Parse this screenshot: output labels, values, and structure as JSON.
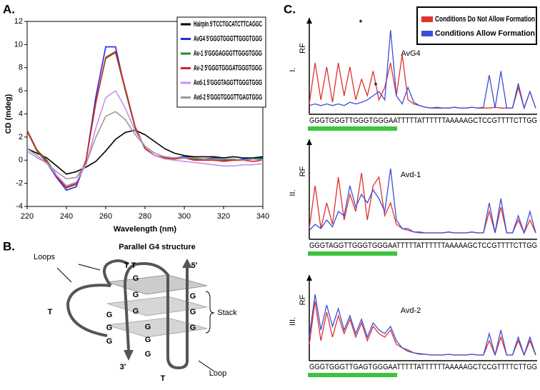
{
  "chart_data": [
    {
      "type": "line",
      "panel_label": "A.",
      "xlabel": "Wavelength (nm)",
      "ylabel": "CD (mdeg)",
      "xlim": [
        220,
        340
      ],
      "ylim": [
        -4,
        12
      ],
      "xticks": [
        220,
        240,
        260,
        280,
        300,
        320,
        340
      ],
      "yticks": [
        -4,
        -2,
        0,
        2,
        4,
        6,
        8,
        10,
        12
      ],
      "legend": "upper right",
      "x": [
        220,
        225,
        230,
        235,
        240,
        245,
        250,
        255,
        260,
        265,
        270,
        275,
        280,
        285,
        290,
        295,
        300,
        305,
        310,
        315,
        320,
        325,
        330,
        335,
        340
      ],
      "series": [
        {
          "name": "Hairpin 5'TCCTGCATCTTCAGGC",
          "color": "#000000",
          "values": [
            1,
            0.6,
            0.2,
            -0.5,
            -1.2,
            -1,
            -0.6,
            -0.1,
            0.8,
            1.8,
            2.4,
            2.6,
            2.2,
            1.6,
            1,
            0.6,
            0.4,
            0.3,
            0.3,
            0.3,
            0.2,
            0.3,
            0.2,
            0.2,
            0.3
          ]
        },
        {
          "name": "AvG4 5'GGGTGGGTTGGGTGGG",
          "color": "#1a2fe0",
          "values": [
            2.5,
            0.8,
            -0.2,
            -1.5,
            -2.6,
            -2.3,
            0,
            5.5,
            9.8,
            9.8,
            6,
            2.8,
            1,
            0.4,
            0.2,
            0.2,
            0.3,
            0.2,
            0.1,
            0.2,
            0.1,
            0,
            0.1,
            0.1,
            0.2
          ]
        },
        {
          "name": "Av-1 5'GGGAGGGTTGGGTGGG",
          "color": "#2a8a2a",
          "values": [
            2.6,
            0.9,
            0,
            -1.3,
            -2.3,
            -2,
            0,
            5,
            8.8,
            9.3,
            6,
            2.8,
            1,
            0.4,
            0.2,
            0.1,
            0.2,
            0.1,
            0,
            0.1,
            0,
            0,
            0,
            0.1,
            0.1
          ]
        },
        {
          "name": "Av-2 5'GGGTGGGATGGGTGGG",
          "color": "#e02020",
          "values": [
            2.5,
            0.8,
            -0.1,
            -1.4,
            -2.4,
            -2.1,
            0,
            5,
            8.9,
            9.4,
            6.2,
            2.9,
            1,
            0.4,
            0.2,
            0.1,
            0.2,
            0,
            0,
            0,
            -0.1,
            0,
            0,
            -0.1,
            0
          ]
        },
        {
          "name": "Avd-1 5'GGGTAGGTTGGGTGGG",
          "color": "#c890f0",
          "values": [
            0.8,
            0.2,
            -0.2,
            -1.3,
            -2.2,
            -1.9,
            -0.4,
            2.8,
            5.4,
            6,
            4.5,
            2.5,
            1.2,
            0.4,
            0.1,
            0,
            -0.1,
            -0.2,
            -0.3,
            -0.4,
            -0.5,
            -0.5,
            -0.4,
            -0.4,
            -0.3
          ]
        },
        {
          "name": "Avd-2 5'GGGTGGGTTGAGTGGG",
          "color": "#999999",
          "values": [
            1,
            0.4,
            -0.3,
            -1,
            -1.6,
            -1.5,
            -0.3,
            2,
            3.8,
            4.2,
            3.5,
            2.2,
            1.2,
            0.6,
            0.3,
            0.2,
            0.2,
            0.2,
            0.1,
            0.1,
            0.1,
            0.1,
            0,
            0.1,
            0
          ]
        }
      ]
    },
    {
      "type": "traces",
      "panel_label": "C.",
      "ylabel": "RF",
      "xlim": [
        0,
        39
      ],
      "ylim": [
        0,
        100
      ],
      "legend": "upper right",
      "x": [
        0,
        1,
        2,
        3,
        4,
        5,
        6,
        7,
        8,
        9,
        10,
        11,
        12,
        13,
        14,
        15,
        16,
        17,
        18,
        19,
        20,
        21,
        22,
        23,
        24,
        25,
        26,
        27,
        28,
        29,
        30,
        31,
        32,
        33,
        34,
        35,
        36,
        37,
        38,
        39
      ],
      "series": [
        {
          "name": "Conditions Do Not Allow Formation",
          "color": "#e03030"
        },
        {
          "name": "Conditions Allow Formation",
          "color": "#3a4fd8"
        }
      ],
      "rows": [
        {
          "label": "I.",
          "title": "AvG4",
          "sequence": "GGGTGGGTTGGGTGGGAATTTTTATTTTTTAAAAAGCTCCGTTTTCTTGG",
          "annotations": [
            "*",
            "*"
          ],
          "series": [
            [
              10,
              60,
              15,
              55,
              12,
              60,
              20,
              55,
              15,
              40,
              20,
              50,
              15,
              30,
              60,
              20,
              70,
              15,
              10,
              8,
              6,
              5,
              6,
              5,
              5,
              6,
              5,
              5,
              6,
              5,
              5,
              5,
              6,
              5,
              5,
              5,
              30,
              5,
              25,
              5
            ],
            [
              8,
              10,
              8,
              10,
              8,
              10,
              8,
              12,
              10,
              12,
              15,
              20,
              25,
              15,
              100,
              20,
              10,
              30,
              12,
              8,
              6,
              5,
              5,
              5,
              5,
              6,
              5,
              5,
              6,
              5,
              6,
              45,
              5,
              50,
              5,
              5,
              35,
              5,
              25,
              5
            ]
          ]
        },
        {
          "label": "II.",
          "title": "Avd-1",
          "sequence": "GGGTAGGTTGGGTGGGAATTTTTATTTTTTAAAAAGCTCCGTTTTCTTGG",
          "series": [
            [
              10,
              60,
              10,
              40,
              15,
              70,
              20,
              50,
              30,
              75,
              20,
              60,
              70,
              25,
              40,
              15,
              10,
              8,
              6,
              5,
              5,
              5,
              5,
              5,
              6,
              5,
              5,
              5,
              6,
              5,
              5,
              30,
              5,
              35,
              5,
              5,
              20,
              5,
              20,
              5
            ],
            [
              8,
              15,
              10,
              20,
              12,
              30,
              25,
              60,
              35,
              50,
              40,
              55,
              45,
              30,
              80,
              20,
              10,
              10,
              6,
              6,
              5,
              5,
              5,
              5,
              6,
              5,
              5,
              5,
              6,
              5,
              5,
              40,
              5,
              45,
              5,
              5,
              25,
              5,
              30,
              5
            ]
          ]
        },
        {
          "label": "III.",
          "title": "Avd-2",
          "sequence": "GGGTGGGTTGAGTGGGAATTTTTATTTTTTAAAAAGCTCCGTTTTCTTGG",
          "series": [
            [
              20,
              80,
              25,
              65,
              30,
              60,
              35,
              55,
              30,
              50,
              25,
              45,
              35,
              30,
              40,
              20,
              15,
              10,
              8,
              6,
              6,
              5,
              5,
              5,
              6,
              5,
              5,
              5,
              6,
              5,
              5,
              25,
              5,
              30,
              5,
              5,
              25,
              5,
              25,
              5
            ],
            [
              30,
              90,
              40,
              75,
              45,
              70,
              40,
              60,
              35,
              55,
              30,
              50,
              40,
              35,
              45,
              25,
              15,
              12,
              8,
              7,
              6,
              5,
              5,
              5,
              6,
              5,
              5,
              5,
              6,
              5,
              5,
              35,
              5,
              40,
              5,
              5,
              30,
              5,
              30,
              5
            ]
          ]
        }
      ]
    }
  ],
  "diagram": {
    "panel_label": "B.",
    "title": "Parallel G4 structure",
    "labels": [
      "Loops",
      "T T",
      "5'",
      "T",
      "Stack",
      "3'",
      "Loop",
      "T",
      "G",
      "G",
      "G",
      "G",
      "G",
      "G",
      "G",
      "G",
      "G",
      "G",
      "G",
      "G"
    ]
  }
}
